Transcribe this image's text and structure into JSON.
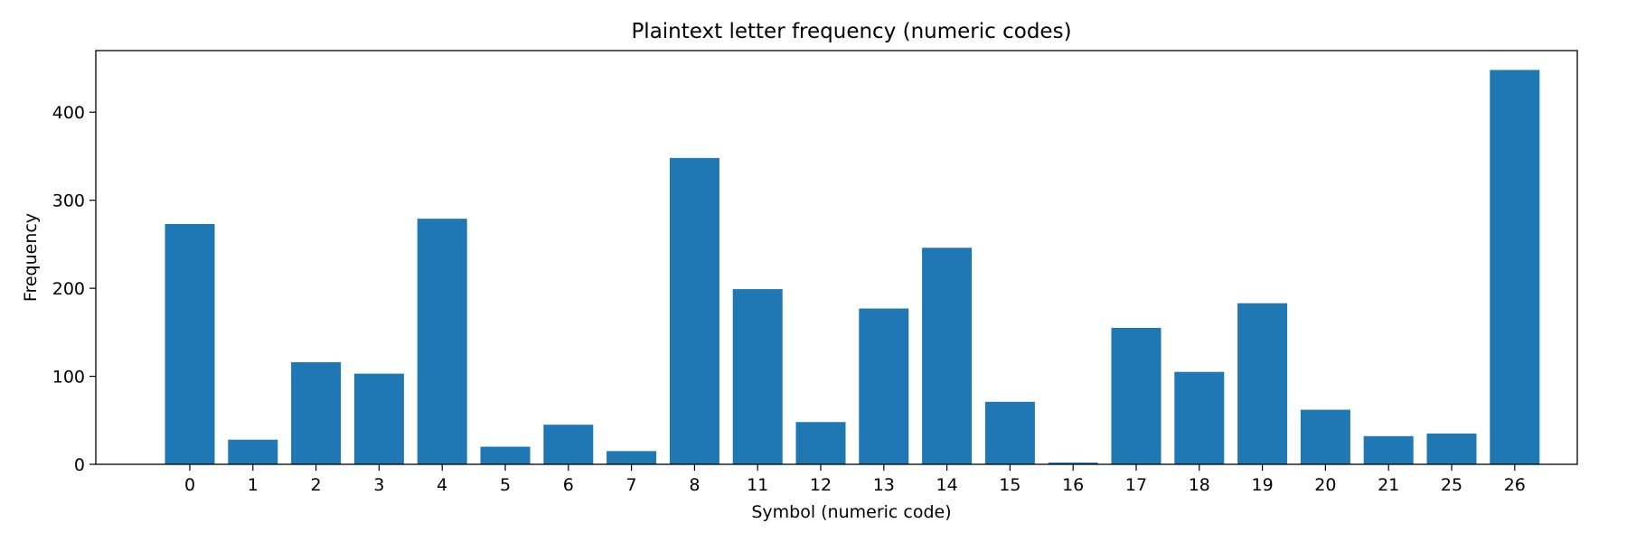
{
  "chart_data": {
    "type": "bar",
    "title": "Plaintext letter frequency (numeric codes)",
    "xlabel": "Symbol (numeric code)",
    "ylabel": "Frequency",
    "categories": [
      "0",
      "1",
      "2",
      "3",
      "4",
      "5",
      "6",
      "7",
      "8",
      "11",
      "12",
      "13",
      "14",
      "15",
      "16",
      "17",
      "18",
      "19",
      "20",
      "21",
      "25",
      "26"
    ],
    "values": [
      273,
      28,
      116,
      103,
      279,
      20,
      45,
      15,
      348,
      199,
      48,
      177,
      246,
      71,
      2,
      155,
      105,
      183,
      62,
      32,
      35,
      448
    ],
    "ylim": [
      0,
      470
    ],
    "yticks": [
      0,
      100,
      200,
      300,
      400
    ],
    "grid": false,
    "bar_color": "#1f77b4"
  }
}
